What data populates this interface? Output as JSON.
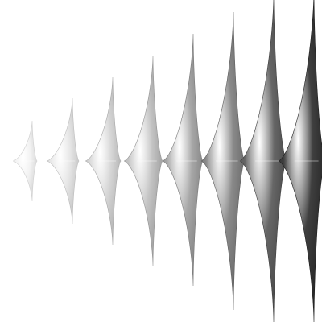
{
  "scene": {
    "background": "#ffffff",
    "shapes": [
      {
        "id": 1,
        "color": "#f2f2f2",
        "edge": "#cfcfcf"
      },
      {
        "id": 2,
        "color": "#e6e6e6",
        "edge": "#bdbdbd"
      },
      {
        "id": 3,
        "color": "#d6d6d6",
        "edge": "#a9a9a9"
      },
      {
        "id": 4,
        "color": "#c3c3c3",
        "edge": "#949494"
      },
      {
        "id": 5,
        "color": "#a7a7a7",
        "edge": "#7a7a7a"
      },
      {
        "id": 6,
        "color": "#8a8a8a",
        "edge": "#5f5f5f"
      },
      {
        "id": 7,
        "color": "#666666",
        "edge": "#3f3f3f"
      },
      {
        "id": 8,
        "color": "#3f3f3f",
        "edge": "#1f1f1f"
      }
    ]
  }
}
